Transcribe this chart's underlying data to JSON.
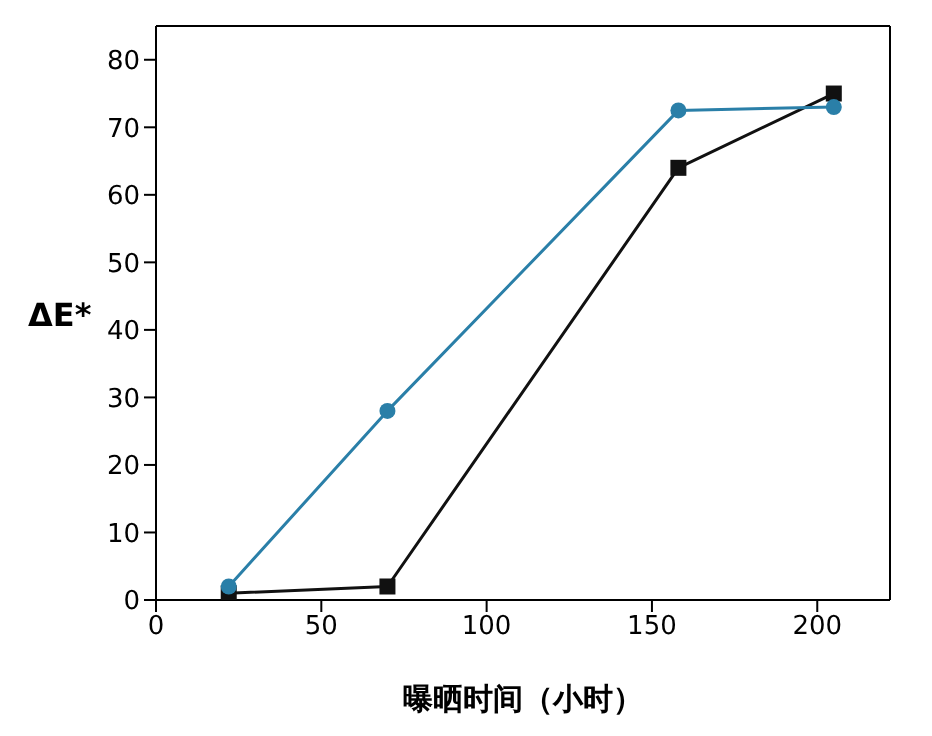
{
  "chart_data": {
    "type": "line",
    "xlabel": "曝晒时间（小时）",
    "ylabel": "ΔE*",
    "xlim": [
      0,
      222
    ],
    "xticks": [
      0,
      50,
      100,
      150,
      200
    ],
    "ylim": [
      0,
      85
    ],
    "yticks": [
      0,
      10,
      20,
      30,
      40,
      50,
      60,
      70,
      80
    ],
    "grid": false,
    "legend": false,
    "series": [
      {
        "color": "#2a7fa8",
        "marker": "circle",
        "x": [
          22,
          70,
          158,
          205
        ],
        "values": [
          2,
          28,
          72.5,
          73
        ]
      },
      {
        "color": "#111111",
        "marker": "square",
        "x": [
          22,
          70,
          158,
          205
        ],
        "values": [
          1,
          2,
          64,
          75
        ]
      }
    ]
  }
}
